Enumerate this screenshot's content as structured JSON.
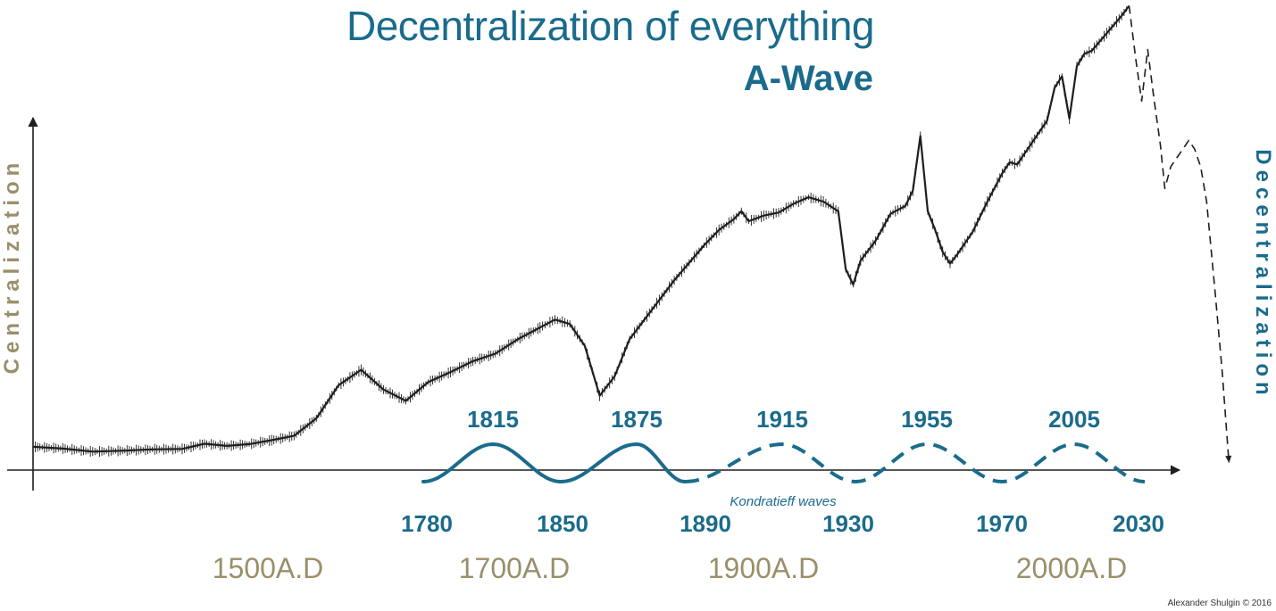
{
  "colors": {
    "blue": "#1a6b8c",
    "khaki": "#9a8f6a",
    "series": "#1e1e1e",
    "axis": "#1e1e1e"
  },
  "credit": "Alexander Shulgin © 2016",
  "chart_data": {
    "type": "line",
    "title": "Decentralization of everything",
    "subtitle": "A-Wave",
    "ylabel_left": "Centralization",
    "ylabel_right": "Decentralization",
    "era_labels": [
      "1500A.D",
      "1700A.D",
      "1900A.D",
      "2000A.D"
    ],
    "grid": false,
    "legend": "none",
    "series": [
      {
        "style": "solid",
        "points": [
          [
            0,
            3.9
          ],
          [
            4,
            3.5
          ],
          [
            8,
            2.8
          ],
          [
            12,
            3.0
          ],
          [
            16,
            3.3
          ],
          [
            20,
            3.4
          ],
          [
            23,
            4.6
          ],
          [
            26,
            4.1
          ],
          [
            29,
            4.5
          ],
          [
            32,
            5.4
          ],
          [
            35,
            6.4
          ],
          [
            38,
            10.4
          ],
          [
            41,
            18.0
          ],
          [
            44,
            21.5
          ],
          [
            47,
            17.0
          ],
          [
            50,
            14.4
          ],
          [
            53,
            18.7
          ],
          [
            56,
            21.0
          ],
          [
            59,
            23.5
          ],
          [
            62,
            25.2
          ],
          [
            65,
            28.5
          ],
          [
            68,
            31.2
          ],
          [
            70,
            33.0
          ],
          [
            72,
            32.0
          ],
          [
            74,
            27.0
          ],
          [
            76,
            15.6
          ],
          [
            78,
            20.0
          ],
          [
            80,
            28.5
          ],
          [
            82,
            33.0
          ],
          [
            84,
            37.5
          ],
          [
            86,
            42.0
          ],
          [
            88,
            46.0
          ],
          [
            90,
            50.0
          ],
          [
            92,
            53.5
          ],
          [
            94,
            56.0
          ],
          [
            95,
            57.8
          ],
          [
            96,
            55.5
          ],
          [
            98,
            56.8
          ],
          [
            100,
            57.5
          ],
          [
            102,
            59.5
          ],
          [
            104,
            61.0
          ],
          [
            106,
            60.0
          ],
          [
            108,
            57.8
          ],
          [
            109,
            44.6
          ],
          [
            110,
            41.0
          ],
          [
            111,
            46.5
          ],
          [
            113,
            51.0
          ],
          [
            115,
            57.2
          ],
          [
            117,
            59.0
          ],
          [
            118,
            62.5
          ],
          [
            119,
            75.0
          ],
          [
            120,
            57.8
          ],
          [
            121,
            53.5
          ],
          [
            122,
            48.5
          ],
          [
            123,
            45.8
          ],
          [
            124,
            48.0
          ],
          [
            126,
            53.0
          ],
          [
            128,
            60.0
          ],
          [
            130,
            66.5
          ],
          [
            131,
            69.0
          ],
          [
            132,
            68.5
          ],
          [
            134,
            73.5
          ],
          [
            136,
            78.5
          ],
          [
            137,
            86.0
          ],
          [
            138,
            88.7
          ],
          [
            139,
            79.0
          ],
          [
            140,
            91.0
          ],
          [
            141,
            93.8
          ],
          [
            142,
            94.5
          ],
          [
            144,
            98.5
          ],
          [
            146,
            102.5
          ],
          [
            147,
            104.8
          ]
        ]
      },
      {
        "style": "dashed",
        "points": [
          [
            147,
            104.8
          ],
          [
            147.9,
            92.5
          ],
          [
            148.7,
            83.0
          ],
          [
            149.5,
            94.8
          ],
          [
            150.3,
            84.0
          ],
          [
            151.2,
            73.0
          ],
          [
            151.8,
            63.0
          ],
          [
            152.6,
            68.0
          ],
          [
            153.4,
            70.0
          ],
          [
            154.2,
            72.0
          ],
          [
            155,
            74.0
          ],
          [
            155.8,
            72.0
          ],
          [
            156.6,
            68.0
          ],
          [
            157.4,
            60.0
          ],
          [
            158.5,
            40.0
          ],
          [
            159.5,
            21.0
          ],
          [
            160.4,
            0.2
          ]
        ]
      }
    ],
    "kondratieff_waves": {
      "label": "Kondratieff  waves",
      "peaks": [
        "1815",
        "1875",
        "1915",
        "1955",
        "2005"
      ],
      "troughs": [
        "1780",
        "1850",
        "1890",
        "1930",
        "1970",
        "2030"
      ],
      "solid_until": "1890"
    }
  }
}
